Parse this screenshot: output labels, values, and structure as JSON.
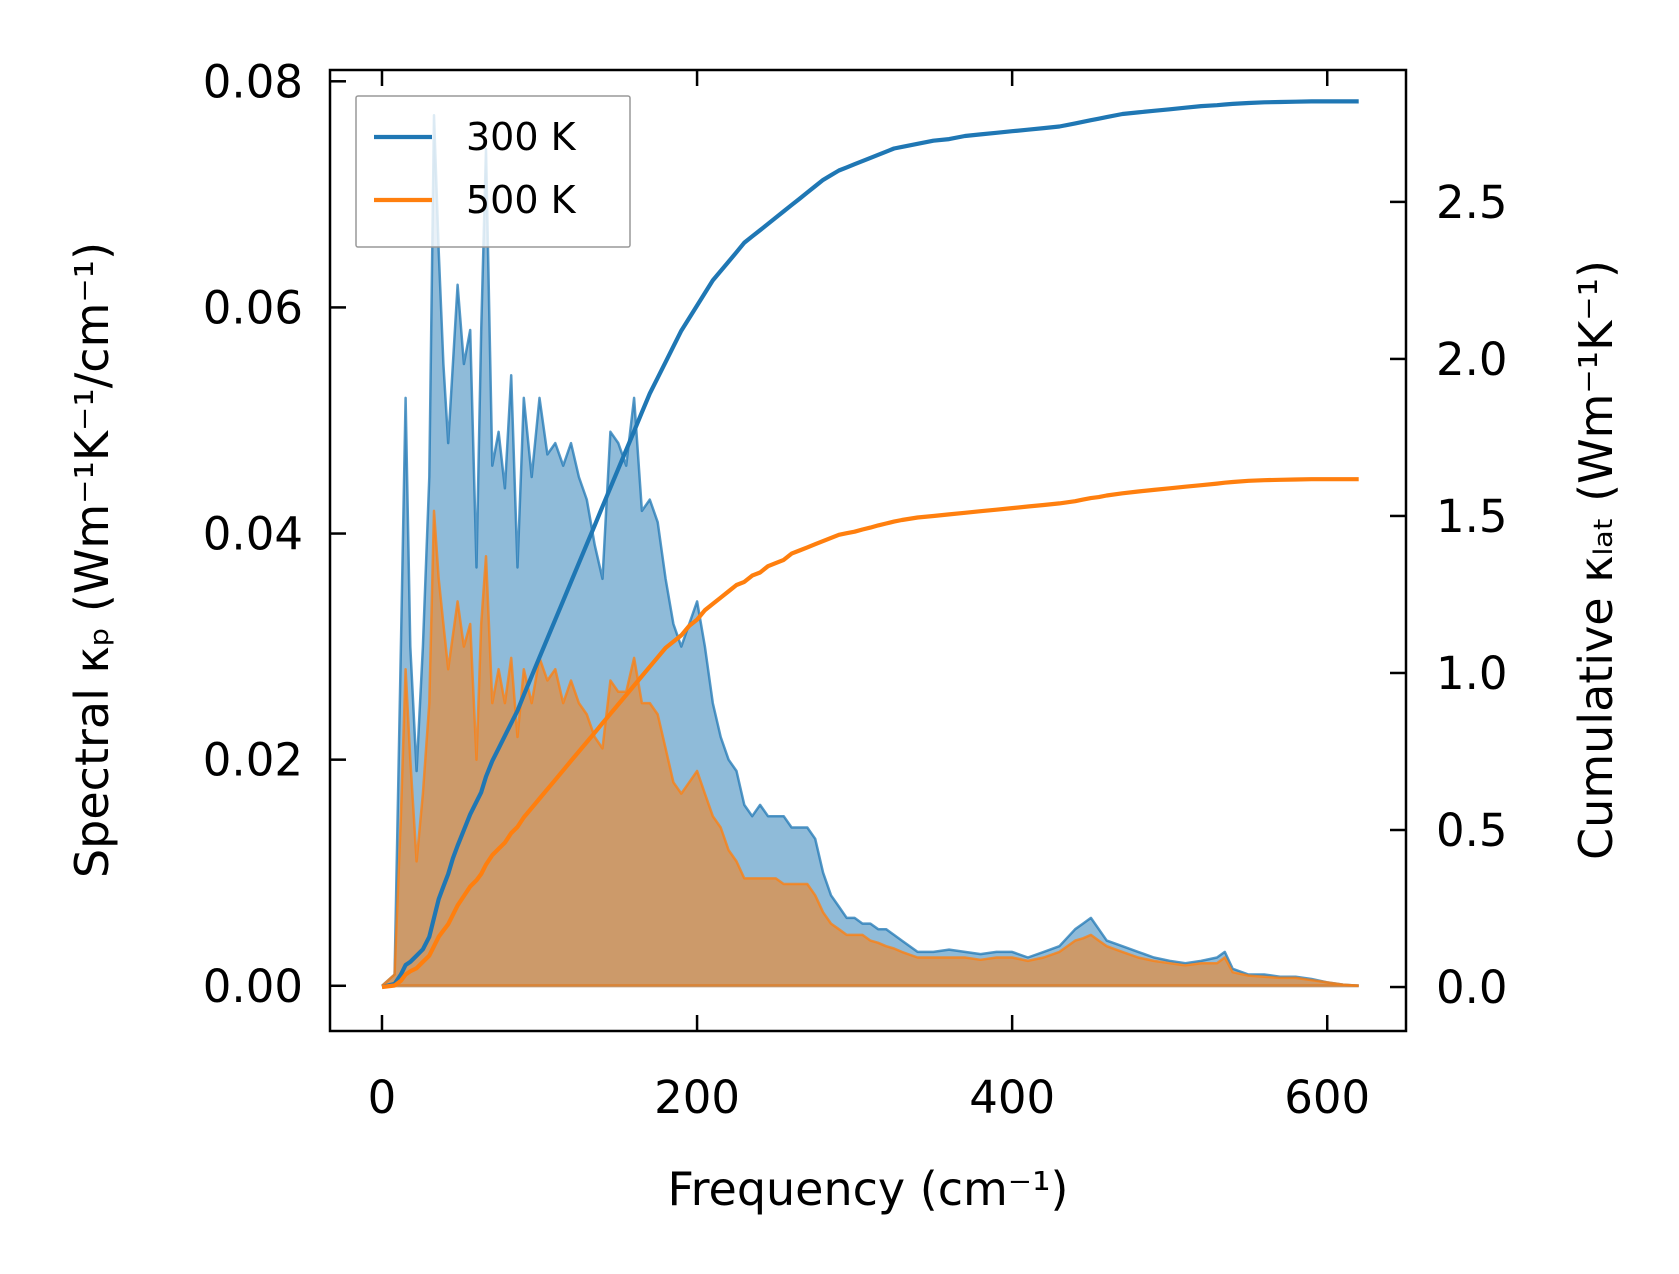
{
  "chart_data": {
    "type": "line",
    "title": "",
    "xlabel": "Frequency (cm⁻¹)",
    "ylabel_left": "Spectral κₚ (Wm⁻¹K⁻¹/cm⁻¹)",
    "ylabel_right": "Cumulative κₗₐₜ (Wm⁻¹K⁻¹)",
    "xlim": [
      -33,
      650
    ],
    "ylim_left": [
      -0.004,
      0.081
    ],
    "ylim_right": [
      -0.14,
      2.92
    ],
    "xticks": [
      0,
      200,
      400,
      600
    ],
    "yticks_left": [
      0.0,
      0.02,
      0.04,
      0.06,
      0.08
    ],
    "yticks_right": [
      0.0,
      0.5,
      1.0,
      1.5,
      2.0,
      2.5
    ],
    "legend": {
      "position": "top-left",
      "entries": [
        "300 K",
        "500 K"
      ]
    },
    "colors": {
      "300 K": "#1f77b4",
      "500 K": "#ff7f0e"
    },
    "x": [
      0,
      8,
      12,
      15,
      18,
      22,
      26,
      30,
      33,
      36,
      39,
      42,
      45,
      48,
      52,
      56,
      60,
      63,
      66,
      70,
      74,
      78,
      82,
      86,
      90,
      95,
      100,
      105,
      110,
      115,
      120,
      125,
      130,
      135,
      140,
      145,
      150,
      155,
      160,
      165,
      170,
      175,
      180,
      185,
      190,
      195,
      200,
      205,
      210,
      215,
      220,
      225,
      230,
      235,
      240,
      245,
      250,
      255,
      260,
      265,
      270,
      275,
      280,
      285,
      290,
      295,
      300,
      305,
      310,
      315,
      320,
      325,
      330,
      340,
      350,
      360,
      370,
      380,
      390,
      400,
      410,
      420,
      430,
      440,
      445,
      450,
      455,
      460,
      470,
      480,
      490,
      500,
      510,
      520,
      530,
      535,
      540,
      550,
      560,
      570,
      580,
      590,
      600,
      610,
      620
    ],
    "series": [
      {
        "name": "300 K",
        "spectral": [
          0,
          0.001,
          0.03,
          0.052,
          0.03,
          0.019,
          0.03,
          0.045,
          0.077,
          0.065,
          0.055,
          0.048,
          0.055,
          0.062,
          0.055,
          0.058,
          0.037,
          0.058,
          0.074,
          0.046,
          0.049,
          0.044,
          0.054,
          0.037,
          0.052,
          0.045,
          0.052,
          0.047,
          0.048,
          0.046,
          0.048,
          0.045,
          0.043,
          0.039,
          0.036,
          0.049,
          0.048,
          0.046,
          0.052,
          0.042,
          0.043,
          0.041,
          0.036,
          0.032,
          0.03,
          0.032,
          0.034,
          0.03,
          0.025,
          0.022,
          0.02,
          0.019,
          0.016,
          0.015,
          0.016,
          0.015,
          0.015,
          0.015,
          0.014,
          0.014,
          0.014,
          0.013,
          0.01,
          0.008,
          0.007,
          0.006,
          0.006,
          0.0055,
          0.0055,
          0.005,
          0.005,
          0.0045,
          0.004,
          0.003,
          0.003,
          0.0032,
          0.003,
          0.0028,
          0.003,
          0.003,
          0.0025,
          0.003,
          0.0035,
          0.005,
          0.0055,
          0.006,
          0.005,
          0.004,
          0.0035,
          0.003,
          0.0025,
          0.0022,
          0.002,
          0.0022,
          0.0025,
          0.003,
          0.0015,
          0.001,
          0.001,
          0.0008,
          0.0008,
          0.0006,
          0.0003,
          0.0001,
          0
        ],
        "cumulative": [
          0,
          0.01,
          0.04,
          0.07,
          0.08,
          0.1,
          0.12,
          0.16,
          0.22,
          0.28,
          0.32,
          0.36,
          0.41,
          0.45,
          0.5,
          0.55,
          0.59,
          0.62,
          0.67,
          0.72,
          0.76,
          0.8,
          0.84,
          0.88,
          0.93,
          0.99,
          1.05,
          1.11,
          1.17,
          1.23,
          1.29,
          1.35,
          1.41,
          1.47,
          1.53,
          1.59,
          1.65,
          1.71,
          1.77,
          1.83,
          1.89,
          1.94,
          1.99,
          2.04,
          2.09,
          2.13,
          2.17,
          2.21,
          2.25,
          2.28,
          2.31,
          2.34,
          2.37,
          2.39,
          2.41,
          2.43,
          2.45,
          2.47,
          2.49,
          2.51,
          2.53,
          2.55,
          2.57,
          2.585,
          2.6,
          2.61,
          2.62,
          2.63,
          2.64,
          2.65,
          2.66,
          2.67,
          2.675,
          2.685,
          2.695,
          2.7,
          2.71,
          2.715,
          2.72,
          2.725,
          2.73,
          2.735,
          2.74,
          2.75,
          2.755,
          2.76,
          2.765,
          2.77,
          2.78,
          2.785,
          2.79,
          2.795,
          2.8,
          2.805,
          2.808,
          2.81,
          2.812,
          2.815,
          2.817,
          2.818,
          2.819,
          2.82,
          2.82,
          2.82,
          2.82
        ]
      },
      {
        "name": "500 K",
        "spectral": [
          0,
          0.001,
          0.015,
          0.028,
          0.02,
          0.011,
          0.017,
          0.025,
          0.042,
          0.036,
          0.032,
          0.028,
          0.031,
          0.034,
          0.03,
          0.032,
          0.02,
          0.032,
          0.038,
          0.025,
          0.028,
          0.025,
          0.029,
          0.022,
          0.028,
          0.025,
          0.029,
          0.027,
          0.028,
          0.025,
          0.027,
          0.025,
          0.024,
          0.022,
          0.021,
          0.027,
          0.026,
          0.026,
          0.029,
          0.025,
          0.025,
          0.024,
          0.021,
          0.018,
          0.017,
          0.018,
          0.019,
          0.017,
          0.015,
          0.014,
          0.012,
          0.011,
          0.0095,
          0.0095,
          0.0095,
          0.0095,
          0.0095,
          0.009,
          0.009,
          0.009,
          0.009,
          0.008,
          0.0065,
          0.0055,
          0.005,
          0.0045,
          0.0045,
          0.0045,
          0.004,
          0.0038,
          0.0035,
          0.0033,
          0.003,
          0.0025,
          0.0025,
          0.0025,
          0.0025,
          0.0023,
          0.0025,
          0.0025,
          0.0022,
          0.0025,
          0.003,
          0.004,
          0.0042,
          0.0045,
          0.004,
          0.0035,
          0.003,
          0.0025,
          0.0022,
          0.002,
          0.0018,
          0.002,
          0.002,
          0.0025,
          0.0012,
          0.0009,
          0.0008,
          0.0007,
          0.0007,
          0.0005,
          0.0003,
          0.0001,
          0
        ],
        "cumulative": [
          0,
          0.005,
          0.02,
          0.04,
          0.05,
          0.06,
          0.08,
          0.1,
          0.13,
          0.16,
          0.18,
          0.2,
          0.23,
          0.26,
          0.29,
          0.32,
          0.34,
          0.36,
          0.39,
          0.42,
          0.44,
          0.46,
          0.49,
          0.51,
          0.54,
          0.57,
          0.6,
          0.63,
          0.66,
          0.69,
          0.72,
          0.75,
          0.78,
          0.81,
          0.84,
          0.87,
          0.9,
          0.93,
          0.96,
          0.99,
          1.02,
          1.05,
          1.08,
          1.1,
          1.12,
          1.15,
          1.17,
          1.2,
          1.22,
          1.24,
          1.26,
          1.28,
          1.29,
          1.31,
          1.32,
          1.34,
          1.35,
          1.36,
          1.38,
          1.39,
          1.4,
          1.41,
          1.42,
          1.43,
          1.44,
          1.445,
          1.45,
          1.457,
          1.463,
          1.47,
          1.476,
          1.482,
          1.487,
          1.495,
          1.5,
          1.505,
          1.51,
          1.515,
          1.52,
          1.525,
          1.53,
          1.535,
          1.54,
          1.547,
          1.552,
          1.557,
          1.56,
          1.565,
          1.572,
          1.578,
          1.583,
          1.588,
          1.593,
          1.598,
          1.603,
          1.606,
          1.608,
          1.612,
          1.614,
          1.615,
          1.616,
          1.617,
          1.617,
          1.617,
          1.617
        ]
      }
    ]
  }
}
